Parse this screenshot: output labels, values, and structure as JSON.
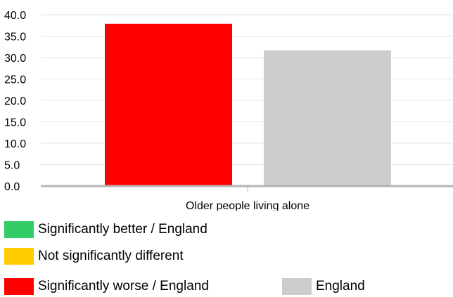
{
  "chart_data": {
    "type": "bar",
    "categories": [
      "Older people living alone"
    ],
    "series": [
      {
        "values": [
          37.9
        ],
        "color": "#ff0000"
      },
      {
        "name": "England",
        "values": [
          31.7
        ],
        "color": "#cccccc"
      }
    ],
    "y_ticks": [
      "0.0",
      "5.0",
      "10.0",
      "15.0",
      "20.0",
      "25.0",
      "30.0",
      "35.0",
      "40.0"
    ],
    "ylim": [
      0,
      40
    ],
    "grid": true,
    "legend_position": "bottom"
  },
  "legend": [
    {
      "label": "Significantly better / England",
      "color": "#33cc66"
    },
    {
      "label": "Not significantly different",
      "color": "#ffcc00"
    },
    {
      "label": "Significantly worse / England",
      "color": "#ff0000"
    },
    {
      "label": "England",
      "color": "#cccccc"
    }
  ]
}
